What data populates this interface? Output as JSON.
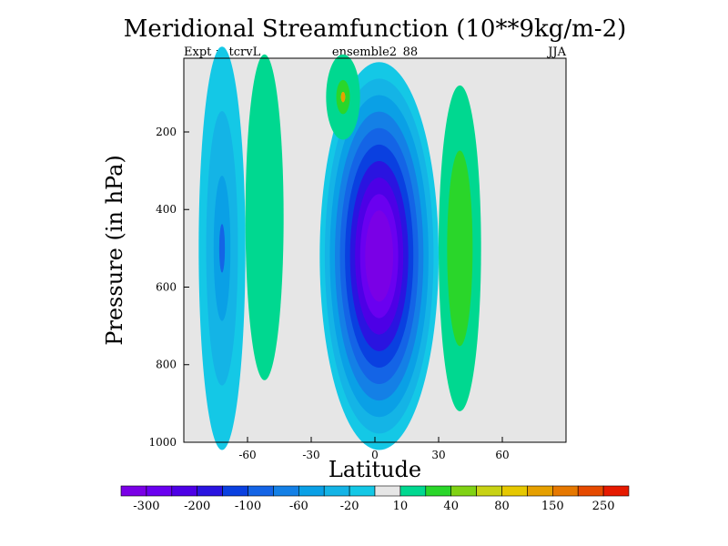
{
  "chart_data": {
    "type": "heatmap",
    "title": "Meridional Streamfunction (10**9kg/m-2)",
    "left_label": "Expt = tcrvL",
    "center_label": "ensemble2_88",
    "right_label": "JJA",
    "xlabel": "Latitude",
    "ylabel": "Pressure (in hPa)",
    "xlim": [
      -90,
      90
    ],
    "ylim": [
      1000,
      10
    ],
    "x_ticks": [
      {
        "value": -60,
        "label": "-60"
      },
      {
        "value": -30,
        "label": "-30"
      },
      {
        "value": 0,
        "label": "0"
      },
      {
        "value": 30,
        "label": "30"
      },
      {
        "value": 60,
        "label": "60"
      }
    ],
    "y_ticks": [
      {
        "value": 200,
        "label": "200"
      },
      {
        "value": 400,
        "label": "400"
      },
      {
        "value": 600,
        "label": "600"
      },
      {
        "value": 800,
        "label": "800"
      },
      {
        "value": 1000,
        "label": "1000"
      }
    ],
    "background_color": "#e6e6e6",
    "colorbar": {
      "colors": [
        "#7a00e6",
        "#6a00f0",
        "#4d00e6",
        "#2a14e0",
        "#0a40e0",
        "#1464e6",
        "#1480e6",
        "#0aa0e6",
        "#14b4e6",
        "#14c8e6",
        "#e6e6e6",
        "#00d890",
        "#2ad62a",
        "#80d214",
        "#c8d214",
        "#e6c800",
        "#e6a000",
        "#e67800",
        "#e64a00",
        "#e61a00"
      ],
      "labels": [
        {
          "between": 1,
          "text": "-300"
        },
        {
          "between": 3,
          "text": "-200"
        },
        {
          "between": 5,
          "text": "-100"
        },
        {
          "between": 7,
          "text": "-60"
        },
        {
          "between": 9,
          "text": "-20"
        },
        {
          "between": 11,
          "text": "10"
        },
        {
          "between": 13,
          "text": "40"
        },
        {
          "between": 15,
          "text": "80"
        },
        {
          "between": 17,
          "text": "150"
        },
        {
          "between": 19,
          "text": "250"
        }
      ]
    },
    "features": [
      {
        "name": "hadley-cell-south",
        "lat": 2,
        "p": 520,
        "lat_half_width": 28,
        "p_half_width": 500,
        "peak_level": 0,
        "level_step": 0.085
      },
      {
        "name": "ferrel-cell-north",
        "lat": 40,
        "p": 500,
        "lat_half_width": 10,
        "p_half_width": 420,
        "peak_level": 12,
        "level_step": 0.4
      },
      {
        "name": "polar-cell-south",
        "lat": -72,
        "p": 500,
        "lat_half_width": 11,
        "p_half_width": 520,
        "peak_level": 5,
        "level_step": 0.32
      },
      {
        "name": "ferrel-cell-south",
        "lat": -52,
        "p": 420,
        "lat_half_width": 9,
        "p_half_width": 420,
        "peak_level": 11,
        "level_step": 0.5
      },
      {
        "name": "upper-cell-south",
        "lat": -15,
        "p": 110,
        "lat_half_width": 8,
        "p_half_width": 110,
        "peak_level": 16,
        "level_step": 0.6
      }
    ]
  }
}
